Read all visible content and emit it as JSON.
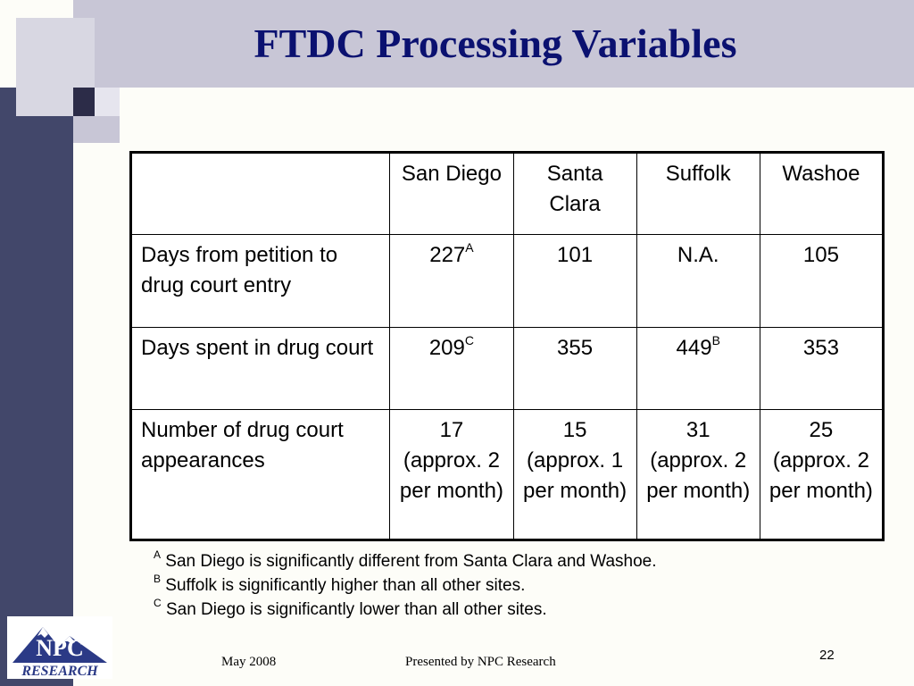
{
  "slide": {
    "title": "FTDC Processing Variables",
    "table": {
      "headers": [
        "",
        "San Diego",
        "Santa Clara",
        "Suffolk",
        "Washoe"
      ],
      "rows": [
        {
          "label": "Days from petition to drug court entry",
          "cells": [
            {
              "value": "227",
              "sup": "A"
            },
            {
              "value": "101",
              "sup": ""
            },
            {
              "value": "N.A.",
              "sup": ""
            },
            {
              "value": "105",
              "sup": ""
            }
          ]
        },
        {
          "label": "Days spent in drug court",
          "cells": [
            {
              "value": "209",
              "sup": "C"
            },
            {
              "value": "355",
              "sup": ""
            },
            {
              "value": "449",
              "sup": "B"
            },
            {
              "value": "353",
              "sup": ""
            }
          ]
        },
        {
          "label": "Number of drug court appearances",
          "cells": [
            {
              "value": "17 (approx. 2 per month)",
              "sup": ""
            },
            {
              "value": "15 (approx. 1 per month)",
              "sup": ""
            },
            {
              "value": "31 (approx. 2 per month)",
              "sup": ""
            },
            {
              "value": "25 (approx. 2 per month)",
              "sup": ""
            }
          ]
        }
      ]
    },
    "footnotes": [
      {
        "mark": "A",
        "text": "San Diego is significantly different from Santa Clara and Washoe."
      },
      {
        "mark": "B",
        "text": "Suffolk is significantly higher than all other sites."
      },
      {
        "mark": "C",
        "text": "San Diego is significantly lower than all other sites."
      }
    ],
    "footer": {
      "date": "May 2008",
      "presented_by": "Presented by NPC Research",
      "page_number": "22"
    },
    "logo": {
      "text_top": "NPC",
      "text_bottom": "RESEARCH",
      "icon": "npc-research-mountain-logo"
    }
  },
  "colors": {
    "title": "#0b1170",
    "left_band": "#42476a",
    "top_band": "#c8c6d6",
    "logo_blue": "#2b3a86"
  }
}
